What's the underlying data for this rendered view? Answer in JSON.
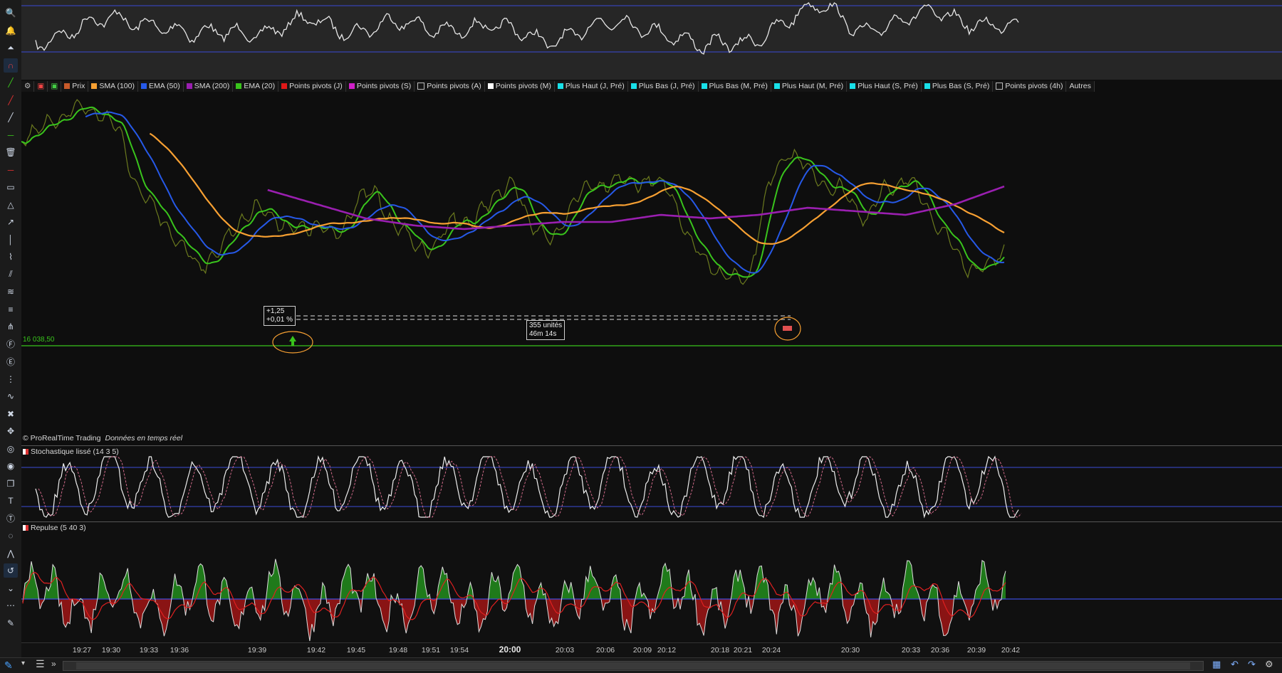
{
  "legend": [
    {
      "label": "Prix",
      "color": "#c85a2a"
    },
    {
      "label": "SMA (100)",
      "color": "#f7a032"
    },
    {
      "label": "EMA (50)",
      "color": "#2659e8"
    },
    {
      "label": "SMA (200)",
      "color": "#9a1fb0"
    },
    {
      "label": "EMA (20)",
      "color": "#39c41c"
    },
    {
      "label": "Points pivots (J)",
      "color": "#e01818"
    },
    {
      "label": "Points pivots (S)",
      "color": "#d020c8"
    },
    {
      "label": "Points pivots (A)",
      "color": "#151515"
    },
    {
      "label": "Points pivots (M)",
      "color": "#ffffff"
    },
    {
      "label": "Plus Haut (J, Pré)",
      "color": "#18e0e8"
    },
    {
      "label": "Plus Bas (J, Pré)",
      "color": "#18e0e8"
    },
    {
      "label": "Plus Bas (M, Pré)",
      "color": "#18e0e8"
    },
    {
      "label": "Plus Haut (M, Pré)",
      "color": "#18e0e8"
    },
    {
      "label": "Plus Haut (S, Pré)",
      "color": "#18e0e8"
    },
    {
      "label": "Plus Bas (S, Pré)",
      "color": "#18e0e8"
    },
    {
      "label": "Points pivots (4h)",
      "color": "#151515"
    },
    {
      "label": "Autres",
      "color": ""
    }
  ],
  "price_level": "16 038,50",
  "trade_box": {
    "line1": "+1,25",
    "line2": "+0,01 %"
  },
  "duration_box": {
    "line1": "355 unités",
    "line2": "46m 14s"
  },
  "watermark": {
    "brand": "© ProRealTime Trading",
    "status": "Données en temps réel"
  },
  "stochastic_title": "Stochastique lissé (14 3 5)",
  "repulse_title": "Repulse (5 40 3)",
  "time_axis": [
    "19:27",
    "19:30",
    "19:33",
    "19:36",
    "19:39",
    "19:42",
    "19:45",
    "19:48",
    "19:51",
    "19:54",
    "20:00",
    "20:03",
    "20:06",
    "20:09",
    "20:12",
    "20:18",
    "20:21",
    "20:24",
    "20:30",
    "20:33",
    "20:36",
    "20:39",
    "20:42"
  ],
  "time_axis_bold": "20:00",
  "toolbar_icons": [
    "zoom-icon",
    "alert-bell-icon",
    "alert-up-icon",
    "magnet-icon",
    "trendline-green-icon",
    "trendline-red-icon",
    "line-icon",
    "horizontal-line-icon",
    "trash-icon",
    "horizontal-red-icon",
    "rectangle-icon",
    "triangle-icon",
    "arrow-icon",
    "vertical-line-icon",
    "polyline-icon",
    "channel-icon",
    "fibonacci-icon",
    "fib-fan-icon",
    "pitchfork-icon",
    "fib-retracement-icon",
    "fib-extension-icon",
    "fib-time-icon",
    "regression-icon",
    "tools-icon",
    "move-icon",
    "ellipse-icon",
    "spiral-icon",
    "copy-icon",
    "text-icon",
    "text-circle-icon",
    "lasso-icon",
    "zigzag-icon",
    "undo-draw-icon",
    "expand-icon",
    "more-icon",
    "draw-tool-icon"
  ],
  "colors": {
    "accent_blue": "#3b4bd6",
    "green": "#39c41c",
    "orange": "#f7a032",
    "purple": "#9a1fb0",
    "blue": "#2659e8"
  }
}
